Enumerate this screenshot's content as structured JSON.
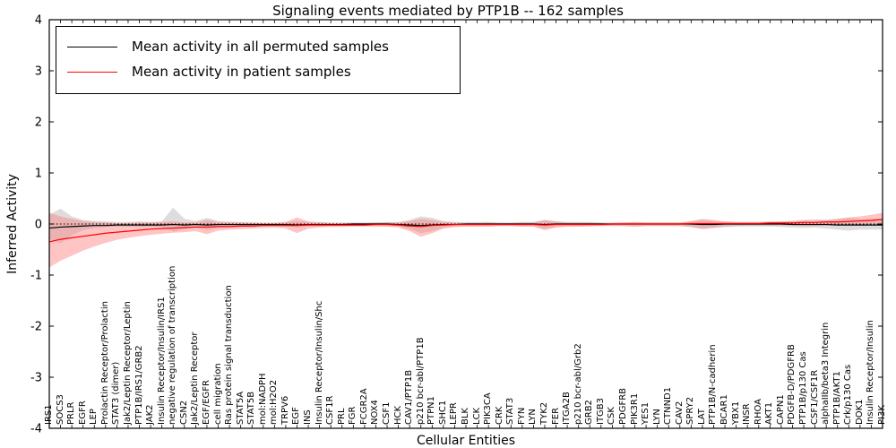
{
  "title": "Signaling events mediated by PTP1B -- 162 samples",
  "colors": {
    "permuted_line": "#000000",
    "patient_line": "#ff0000",
    "permuted_band": "#bbbbbb",
    "patient_band": "#ff7f7f",
    "axis": "#000000",
    "background": "#ffffff"
  },
  "chart_data": {
    "type": "line",
    "title": "Signaling events mediated by PTP1B -- 162 samples",
    "xlabel": "Cellular Entities",
    "ylabel": "Inferred Activity",
    "ylim": [
      -4,
      4
    ],
    "yticks": [
      -4,
      -3,
      -2,
      -1,
      0,
      1,
      2,
      3,
      4
    ],
    "grid": false,
    "legend_position": "upper left",
    "zero_line": {
      "style": "dotted",
      "color": "#000000",
      "y": 0
    },
    "categories": [
      "IRS1",
      "SOCS3",
      "PRLR",
      "EGFR",
      "LEP",
      "Prolactin Receptor/Prolactin",
      "STAT3 (dimer)",
      "Jak2/Leptin Receptor/Leptin",
      "PTP1B/IRS1/GRB2",
      "JAK2",
      "Insulin Receptor/Insulin/IRS1",
      "negative regulation of transcription",
      "CSN2",
      "Jak2/Leptin Receptor",
      "EGF/EGFR",
      "cell migration",
      "Ras protein signal transduction",
      "STAT5A",
      "STAT5B",
      "mol:NADPH",
      "mol:H2O2",
      "TRPV6",
      "EGF",
      "INS",
      "Insulin Receptor/Insulin/Shc",
      "CSF1R",
      "PRL",
      "FGR",
      "FCGR2A",
      "NOX4",
      "CSF1",
      "HCK",
      "CAV1/PTP1B",
      "p210 bcr-abl/PTP1B",
      "PTPN1",
      "SHC1",
      "LEPR",
      "BLK",
      "LCK",
      "PIK3CA",
      "CRK",
      "STAT3",
      "FYN",
      "LYN",
      "TYK2",
      "FER",
      "ITGA2B",
      "p210 bcr-abl/Grb2",
      "GRB2",
      "ITGB3",
      "CSK",
      "PDGFRB",
      "PIK3R1",
      "YES1",
      "LYN",
      "CTNND1",
      "CAV2",
      "SPRY2",
      "LAT",
      "PTP1B/N-cadherin",
      "BCAR1",
      "YBX1",
      "INSR",
      "RHOA",
      "AKT1",
      "CAPN1",
      "PDGFB-D/PDGFRB",
      "PTP1B/p130 Cas",
      "CSF1/CSF1R",
      "alphaIIb/beta3 Integrin",
      "PTP1B/AKT1",
      "Crk/p130 Cas",
      "DOK1",
      "Insulin Receptor/Insulin",
      "PI3K"
    ],
    "series": [
      {
        "name": "Mean activity in all permuted samples",
        "color": "#000000",
        "band_color": "#bbbbbb",
        "values": [
          -0.08,
          -0.06,
          -0.05,
          -0.04,
          -0.03,
          -0.03,
          -0.02,
          -0.02,
          -0.02,
          -0.02,
          -0.02,
          -0.01,
          -0.02,
          -0.01,
          -0.02,
          -0.01,
          -0.01,
          -0.01,
          -0.01,
          -0.01,
          -0.01,
          -0.01,
          -0.02,
          -0.01,
          -0.01,
          -0.01,
          -0.01,
          0.0,
          0.0,
          0.0,
          0.0,
          -0.01,
          -0.02,
          -0.03,
          -0.02,
          -0.01,
          -0.01,
          0.0,
          0.0,
          0.0,
          0.0,
          0.0,
          0.0,
          0.0,
          -0.01,
          0.0,
          0.0,
          0.0,
          0.0,
          0.0,
          0.0,
          0.0,
          0.0,
          0.0,
          0.0,
          0.0,
          0.0,
          0.0,
          -0.01,
          -0.01,
          0.0,
          0.0,
          0.0,
          0.0,
          0.0,
          0.0,
          -0.01,
          -0.01,
          -0.01,
          -0.01,
          -0.02,
          -0.02,
          -0.02,
          -0.02,
          -0.02
        ],
        "band_upper": [
          0.18,
          0.3,
          0.15,
          0.08,
          0.06,
          0.05,
          0.04,
          0.04,
          0.05,
          0.04,
          0.05,
          0.32,
          0.1,
          0.06,
          0.12,
          0.06,
          0.05,
          0.04,
          0.04,
          0.03,
          0.03,
          0.04,
          0.06,
          0.04,
          0.04,
          0.03,
          0.03,
          0.03,
          0.03,
          0.03,
          0.04,
          0.04,
          0.08,
          0.15,
          0.12,
          0.06,
          0.04,
          0.04,
          0.04,
          0.04,
          0.03,
          0.03,
          0.04,
          0.04,
          0.08,
          0.05,
          0.04,
          0.04,
          0.04,
          0.03,
          0.03,
          0.03,
          0.04,
          0.03,
          0.03,
          0.03,
          0.03,
          0.05,
          0.08,
          0.06,
          0.05,
          0.04,
          0.04,
          0.04,
          0.04,
          0.05,
          0.06,
          0.07,
          0.06,
          0.08,
          0.1,
          0.12,
          0.1,
          0.1,
          0.1
        ],
        "band_lower": [
          -0.3,
          -0.38,
          -0.22,
          -0.12,
          -0.08,
          -0.06,
          -0.05,
          -0.05,
          -0.06,
          -0.05,
          -0.06,
          -0.15,
          -0.1,
          -0.07,
          -0.12,
          -0.07,
          -0.06,
          -0.05,
          -0.05,
          -0.04,
          -0.04,
          -0.05,
          -0.07,
          -0.05,
          -0.05,
          -0.04,
          -0.04,
          -0.04,
          -0.04,
          -0.04,
          -0.05,
          -0.05,
          -0.1,
          -0.18,
          -0.14,
          -0.07,
          -0.05,
          -0.05,
          -0.05,
          -0.05,
          -0.04,
          -0.04,
          -0.05,
          -0.05,
          -0.09,
          -0.06,
          -0.05,
          -0.05,
          -0.05,
          -0.04,
          -0.04,
          -0.04,
          -0.05,
          -0.04,
          -0.04,
          -0.04,
          -0.04,
          -0.06,
          -0.09,
          -0.07,
          -0.06,
          -0.05,
          -0.05,
          -0.05,
          -0.05,
          -0.06,
          -0.07,
          -0.08,
          -0.07,
          -0.09,
          -0.11,
          -0.13,
          -0.11,
          -0.11,
          -0.11
        ]
      },
      {
        "name": "Mean activity in patient samples",
        "color": "#ff0000",
        "band_color": "#ff7f7f",
        "values": [
          -0.35,
          -0.3,
          -0.27,
          -0.24,
          -0.21,
          -0.18,
          -0.16,
          -0.14,
          -0.12,
          -0.1,
          -0.09,
          -0.08,
          -0.07,
          -0.06,
          -0.06,
          -0.05,
          -0.05,
          -0.04,
          -0.04,
          -0.03,
          -0.03,
          -0.03,
          -0.03,
          -0.02,
          -0.02,
          -0.02,
          -0.02,
          -0.02,
          -0.02,
          -0.01,
          -0.01,
          -0.02,
          -0.04,
          -0.05,
          -0.03,
          -0.02,
          -0.01,
          -0.01,
          -0.01,
          -0.01,
          -0.01,
          -0.01,
          -0.01,
          -0.01,
          -0.02,
          -0.01,
          -0.01,
          -0.01,
          -0.01,
          -0.01,
          0.0,
          0.0,
          0.0,
          0.0,
          0.0,
          0.0,
          0.0,
          0.01,
          0.01,
          0.01,
          0.01,
          0.01,
          0.01,
          0.01,
          0.02,
          0.02,
          0.02,
          0.03,
          0.03,
          0.04,
          0.04,
          0.05,
          0.06,
          0.07,
          0.09
        ],
        "band_upper": [
          0.22,
          0.15,
          0.1,
          0.06,
          0.04,
          0.03,
          0.02,
          0.02,
          0.03,
          0.03,
          0.04,
          0.05,
          0.03,
          0.03,
          0.08,
          0.04,
          0.03,
          0.03,
          0.02,
          0.02,
          0.02,
          0.04,
          0.13,
          0.05,
          0.03,
          0.02,
          0.02,
          0.02,
          0.02,
          0.03,
          0.03,
          0.03,
          0.06,
          0.1,
          0.08,
          0.04,
          0.03,
          0.02,
          0.02,
          0.03,
          0.02,
          0.02,
          0.03,
          0.03,
          0.08,
          0.05,
          0.03,
          0.03,
          0.03,
          0.02,
          0.02,
          0.03,
          0.04,
          0.03,
          0.03,
          0.03,
          0.03,
          0.06,
          0.1,
          0.08,
          0.05,
          0.04,
          0.04,
          0.04,
          0.05,
          0.05,
          0.06,
          0.08,
          0.09,
          0.08,
          0.1,
          0.13,
          0.15,
          0.18,
          0.22
        ],
        "band_lower": [
          -0.85,
          -0.72,
          -0.62,
          -0.52,
          -0.44,
          -0.37,
          -0.31,
          -0.27,
          -0.24,
          -0.21,
          -0.19,
          -0.17,
          -0.16,
          -0.14,
          -0.2,
          -0.13,
          -0.11,
          -0.1,
          -0.09,
          -0.08,
          -0.07,
          -0.09,
          -0.18,
          -0.09,
          -0.07,
          -0.06,
          -0.06,
          -0.05,
          -0.05,
          -0.05,
          -0.05,
          -0.07,
          -0.14,
          -0.25,
          -0.18,
          -0.09,
          -0.06,
          -0.05,
          -0.05,
          -0.05,
          -0.04,
          -0.04,
          -0.05,
          -0.05,
          -0.12,
          -0.07,
          -0.05,
          -0.05,
          -0.04,
          -0.04,
          -0.04,
          -0.04,
          -0.05,
          -0.04,
          -0.04,
          -0.04,
          -0.04,
          -0.06,
          -0.1,
          -0.08,
          -0.05,
          -0.04,
          -0.03,
          -0.03,
          -0.03,
          -0.03,
          -0.03,
          -0.04,
          -0.04,
          -0.03,
          -0.02,
          -0.02,
          -0.01,
          0.0,
          0.01
        ]
      }
    ]
  }
}
